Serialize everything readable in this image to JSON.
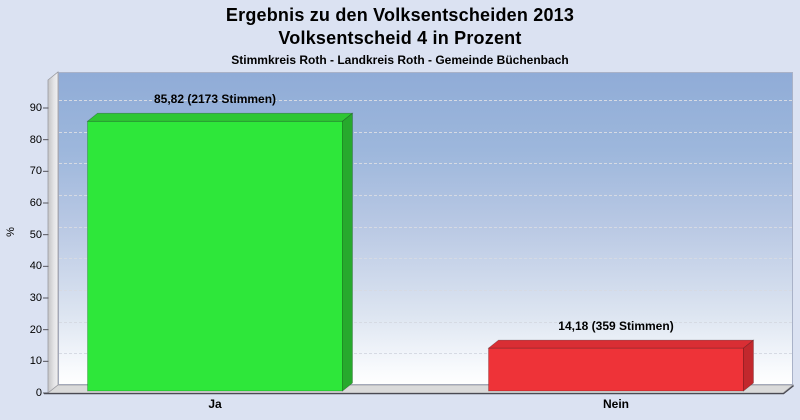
{
  "page": {
    "background_color": "#dbe2f2"
  },
  "chart_data": {
    "type": "bar",
    "style": "3d-bars",
    "title": "Ergebnis zu den Volksentscheiden 2013",
    "subtitle": "Volksentscheid 4 in Prozent",
    "context_line": "Stimmkreis Roth - Landkreis Roth - Gemeinde Büchenbach",
    "categories": [
      "Ja",
      "Nein"
    ],
    "values": [
      85.82,
      14.18
    ],
    "votes": [
      2173,
      359
    ],
    "value_labels": [
      "85,82 (2173 Stimmen)",
      "14,18 (359 Stimmen)"
    ],
    "xlabel": "",
    "ylabel": "%",
    "ylim": [
      0,
      100
    ],
    "yticks": [
      0,
      10,
      20,
      30,
      40,
      50,
      60,
      70,
      80,
      90
    ],
    "grid": "horizontal-dashed",
    "legend": "none",
    "bar_colors": [
      {
        "front": "#2ee73a",
        "top": "#2ec733",
        "side": "#27a92d"
      },
      {
        "front": "#ee3338",
        "top": "#d92e34",
        "side": "#c2282d"
      }
    ],
    "plot_background_top": "#90acd7",
    "plot_background_bottom": "#fefefe"
  }
}
